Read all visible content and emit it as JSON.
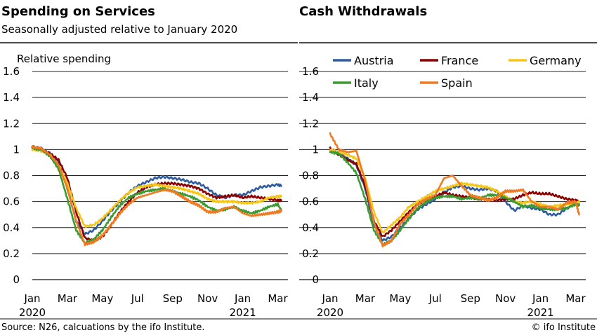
{
  "footer": {
    "source": "Source: N26, calcuations by the ifo Institute.",
    "copyright": "© ifo Institute"
  },
  "colors": {
    "Austria": "#2E5C9E",
    "France": "#8B0000",
    "Germany": "#F5C518",
    "Italy": "#3C9A31",
    "Spain": "#F07A22"
  },
  "chart_data": [
    {
      "type": "line",
      "title": "Spending on Services",
      "subtitle": "Seasonally adjusted relative to January 2020",
      "ylabel": "Relative spending",
      "xlabel": "",
      "ylim": [
        0,
        1.6
      ],
      "yticks": [
        "0",
        "0.2",
        "0.4",
        "0.6",
        "0.8",
        "1",
        "1.2",
        "1.4",
        "1.6"
      ],
      "xticks": [
        {
          "label": "Jan",
          "sublabel": "2020",
          "x": 0
        },
        {
          "label": "Mar",
          "x": 2
        },
        {
          "label": "May",
          "x": 4
        },
        {
          "label": "Jul",
          "x": 6
        },
        {
          "label": "Sep",
          "x": 8
        },
        {
          "label": "Nov",
          "x": 10
        },
        {
          "label": "Jan",
          "sublabel": "2021",
          "x": 12
        },
        {
          "label": "Mar",
          "x": 14
        }
      ],
      "xlim": [
        0,
        14.5
      ],
      "grid": true,
      "x": [
        0,
        0.5,
        1,
        1.5,
        2,
        2.5,
        3,
        3.5,
        4,
        4.5,
        5,
        5.5,
        6,
        6.5,
        7,
        7.5,
        8,
        8.5,
        9,
        9.5,
        10,
        10.5,
        11,
        11.5,
        12,
        12.5,
        13,
        13.5,
        14,
        14.2
      ],
      "series": [
        {
          "name": "Austria",
          "values": [
            1.02,
            1.01,
            0.97,
            0.9,
            0.7,
            0.45,
            0.35,
            0.38,
            0.45,
            0.53,
            0.6,
            0.67,
            0.72,
            0.75,
            0.78,
            0.79,
            0.78,
            0.77,
            0.75,
            0.74,
            0.7,
            0.65,
            0.63,
            0.65,
            0.65,
            0.68,
            0.71,
            0.72,
            0.73,
            0.72
          ]
        },
        {
          "name": "France",
          "values": [
            1.01,
            1.0,
            0.97,
            0.92,
            0.78,
            0.52,
            0.32,
            0.3,
            0.33,
            0.42,
            0.52,
            0.6,
            0.67,
            0.71,
            0.73,
            0.74,
            0.74,
            0.73,
            0.72,
            0.7,
            0.66,
            0.63,
            0.64,
            0.65,
            0.63,
            0.64,
            0.63,
            0.62,
            0.61,
            0.61
          ]
        },
        {
          "name": "Germany",
          "values": [
            1.0,
            0.99,
            0.96,
            0.88,
            0.74,
            0.55,
            0.41,
            0.42,
            0.47,
            0.54,
            0.61,
            0.67,
            0.71,
            0.72,
            0.73,
            0.72,
            0.71,
            0.7,
            0.68,
            0.66,
            0.62,
            0.6,
            0.6,
            0.6,
            0.59,
            0.59,
            0.6,
            0.63,
            0.64,
            0.64
          ]
        },
        {
          "name": "Italy",
          "values": [
            1.01,
            1.0,
            0.95,
            0.85,
            0.62,
            0.38,
            0.28,
            0.31,
            0.38,
            0.48,
            0.57,
            0.63,
            0.66,
            0.68,
            0.69,
            0.7,
            0.68,
            0.66,
            0.64,
            0.61,
            0.56,
            0.53,
            0.54,
            0.56,
            0.53,
            0.51,
            0.53,
            0.56,
            0.58,
            0.53
          ]
        },
        {
          "name": "Spain",
          "values": [
            1.02,
            1.01,
            0.96,
            0.88,
            0.7,
            0.45,
            0.27,
            0.29,
            0.34,
            0.42,
            0.51,
            0.58,
            0.63,
            0.65,
            0.67,
            0.69,
            0.68,
            0.64,
            0.6,
            0.57,
            0.52,
            0.52,
            0.55,
            0.56,
            0.51,
            0.49,
            0.5,
            0.51,
            0.52,
            0.53
          ]
        }
      ]
    },
    {
      "type": "line",
      "title": "Cash Withdrawals",
      "subtitle": "",
      "ylabel": "",
      "xlabel": "",
      "ylim": [
        0,
        1.6
      ],
      "yticks": [
        "0",
        "0.2",
        "0.4",
        "0.6",
        "0.8",
        "1",
        "1.2",
        "1.4",
        "1.6"
      ],
      "xticks": [
        {
          "label": "Jan",
          "sublabel": "2020",
          "x": 0
        },
        {
          "label": "Mar",
          "x": 2
        },
        {
          "label": "May",
          "x": 4
        },
        {
          "label": "Jul",
          "x": 6
        },
        {
          "label": "Sep",
          "x": 8
        },
        {
          "label": "Nov",
          "x": 10
        },
        {
          "label": "Jan",
          "sublabel": "2021",
          "x": 12
        },
        {
          "label": "Mar",
          "x": 14
        }
      ],
      "xlim": [
        0,
        14.5
      ],
      "grid": true,
      "legend": {
        "position": "top",
        "entries": [
          "Austria",
          "France",
          "Germany",
          "Italy",
          "Spain"
        ]
      },
      "x": [
        0,
        0.5,
        1,
        1.5,
        2,
        2.5,
        3,
        3.5,
        4,
        4.5,
        5,
        5.5,
        6,
        6.5,
        7,
        7.5,
        8,
        8.5,
        9,
        9.5,
        10,
        10.5,
        11,
        11.5,
        12,
        12.5,
        13,
        13.5,
        14,
        14.2
      ],
      "series": [
        {
          "name": "Austria",
          "values": [
            0.99,
            0.98,
            0.93,
            0.88,
            0.7,
            0.42,
            0.3,
            0.33,
            0.4,
            0.47,
            0.54,
            0.58,
            0.62,
            0.67,
            0.71,
            0.72,
            0.7,
            0.69,
            0.7,
            0.68,
            0.6,
            0.53,
            0.57,
            0.55,
            0.54,
            0.5,
            0.5,
            0.55,
            0.58,
            0.58
          ]
        },
        {
          "name": "France",
          "values": [
            1.01,
            0.96,
            0.92,
            0.89,
            0.72,
            0.45,
            0.33,
            0.38,
            0.45,
            0.52,
            0.58,
            0.62,
            0.64,
            0.67,
            0.65,
            0.64,
            0.63,
            0.62,
            0.62,
            0.61,
            0.62,
            0.62,
            0.65,
            0.67,
            0.66,
            0.66,
            0.64,
            0.62,
            0.61,
            0.6
          ]
        },
        {
          "name": "Germany",
          "values": [
            1.0,
            0.98,
            0.96,
            0.93,
            0.78,
            0.52,
            0.36,
            0.42,
            0.48,
            0.56,
            0.6,
            0.64,
            0.68,
            0.7,
            0.72,
            0.74,
            0.73,
            0.72,
            0.71,
            0.68,
            0.64,
            0.6,
            0.59,
            0.6,
            0.58,
            0.56,
            0.57,
            0.58,
            0.58,
            0.6
          ]
        },
        {
          "name": "Italy",
          "values": [
            0.98,
            0.97,
            0.9,
            0.82,
            0.62,
            0.38,
            0.27,
            0.3,
            0.38,
            0.47,
            0.55,
            0.6,
            0.63,
            0.64,
            0.64,
            0.62,
            0.63,
            0.62,
            0.65,
            0.65,
            0.63,
            0.6,
            0.56,
            0.57,
            0.55,
            0.54,
            0.54,
            0.55,
            0.58,
            0.57
          ]
        },
        {
          "name": "Spain",
          "values": [
            1.12,
            1.0,
            0.98,
            0.99,
            0.76,
            0.44,
            0.26,
            0.3,
            0.43,
            0.5,
            0.58,
            0.62,
            0.65,
            0.78,
            0.8,
            0.72,
            0.65,
            0.63,
            0.61,
            0.63,
            0.68,
            0.68,
            0.69,
            0.6,
            0.56,
            0.56,
            0.54,
            0.59,
            0.6,
            0.5
          ]
        }
      ]
    }
  ]
}
